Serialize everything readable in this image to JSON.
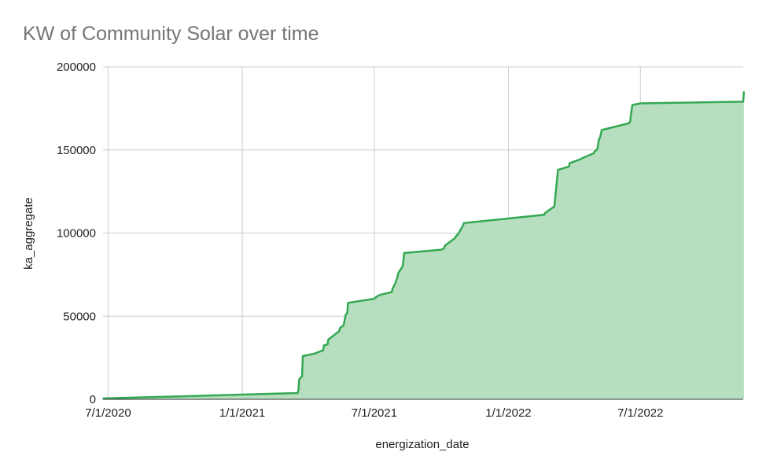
{
  "chart_data": {
    "type": "area",
    "title": "KW of Community Solar over time",
    "xlabel": "energization_date",
    "ylabel": "ka_aggregate",
    "xlim": [
      "2020-06-24",
      "2022-11-19"
    ],
    "ylim": [
      0,
      200000
    ],
    "x_ticks": [
      "7/1/2020",
      "1/1/2021",
      "7/1/2021",
      "1/1/2022",
      "7/1/2022"
    ],
    "y_ticks": [
      "0",
      "50000",
      "100000",
      "150000",
      "200000"
    ],
    "grid": true,
    "legend": "none",
    "colors": {
      "line": "#34a853",
      "fill": "#b7dfbf",
      "grid": "#cccccc"
    },
    "series": [
      {
        "x": [
          "2020-06-24",
          "2021-03-18",
          "2021-03-19",
          "2021-03-20",
          "2021-03-24",
          "2021-03-25",
          "2021-04-10",
          "2021-04-22",
          "2021-04-23",
          "2021-04-28",
          "2021-04-29",
          "2021-05-14",
          "2021-05-15",
          "2021-05-20",
          "2021-05-21",
          "2021-05-23",
          "2021-05-25",
          "2021-05-26",
          "2021-07-01",
          "2021-07-05",
          "2021-07-10",
          "2021-07-25",
          "2021-07-26",
          "2021-07-29",
          "2021-07-30",
          "2021-08-02",
          "2021-08-03",
          "2021-08-09",
          "2021-08-10",
          "2021-08-11",
          "2021-10-01",
          "2021-10-05",
          "2021-10-06",
          "2021-10-20",
          "2021-10-21",
          "2021-10-25",
          "2021-10-26",
          "2021-10-30",
          "2021-11-01",
          "2022-02-19",
          "2022-02-20",
          "2022-03-05",
          "2022-03-10",
          "2022-03-25",
          "2022-03-26",
          "2022-04-10",
          "2022-04-12",
          "2022-04-28",
          "2022-04-29",
          "2022-05-03",
          "2022-05-05",
          "2022-05-07",
          "2022-05-09",
          "2022-06-15",
          "2022-06-17",
          "2022-06-18",
          "2022-06-20",
          "2022-07-01",
          "2022-11-19",
          "2022-11-20"
        ],
        "values": [
          500,
          3800,
          5500,
          12000,
          14000,
          26000,
          27500,
          29500,
          32500,
          33000,
          36000,
          41000,
          43000,
          44500,
          47000,
          51000,
          52000,
          58000,
          60500,
          62000,
          63000,
          64500,
          66500,
          69000,
          70000,
          74000,
          76000,
          80000,
          83500,
          88000,
          90000,
          91000,
          92500,
          97000,
          98000,
          100000,
          101000,
          104000,
          106000,
          111000,
          112000,
          116000,
          138000,
          140000,
          142000,
          144500,
          145000,
          148000,
          149000,
          150500,
          156000,
          158000,
          162000,
          166000,
          167000,
          171000,
          177000,
          178000,
          179000,
          185000
        ]
      }
    ]
  }
}
